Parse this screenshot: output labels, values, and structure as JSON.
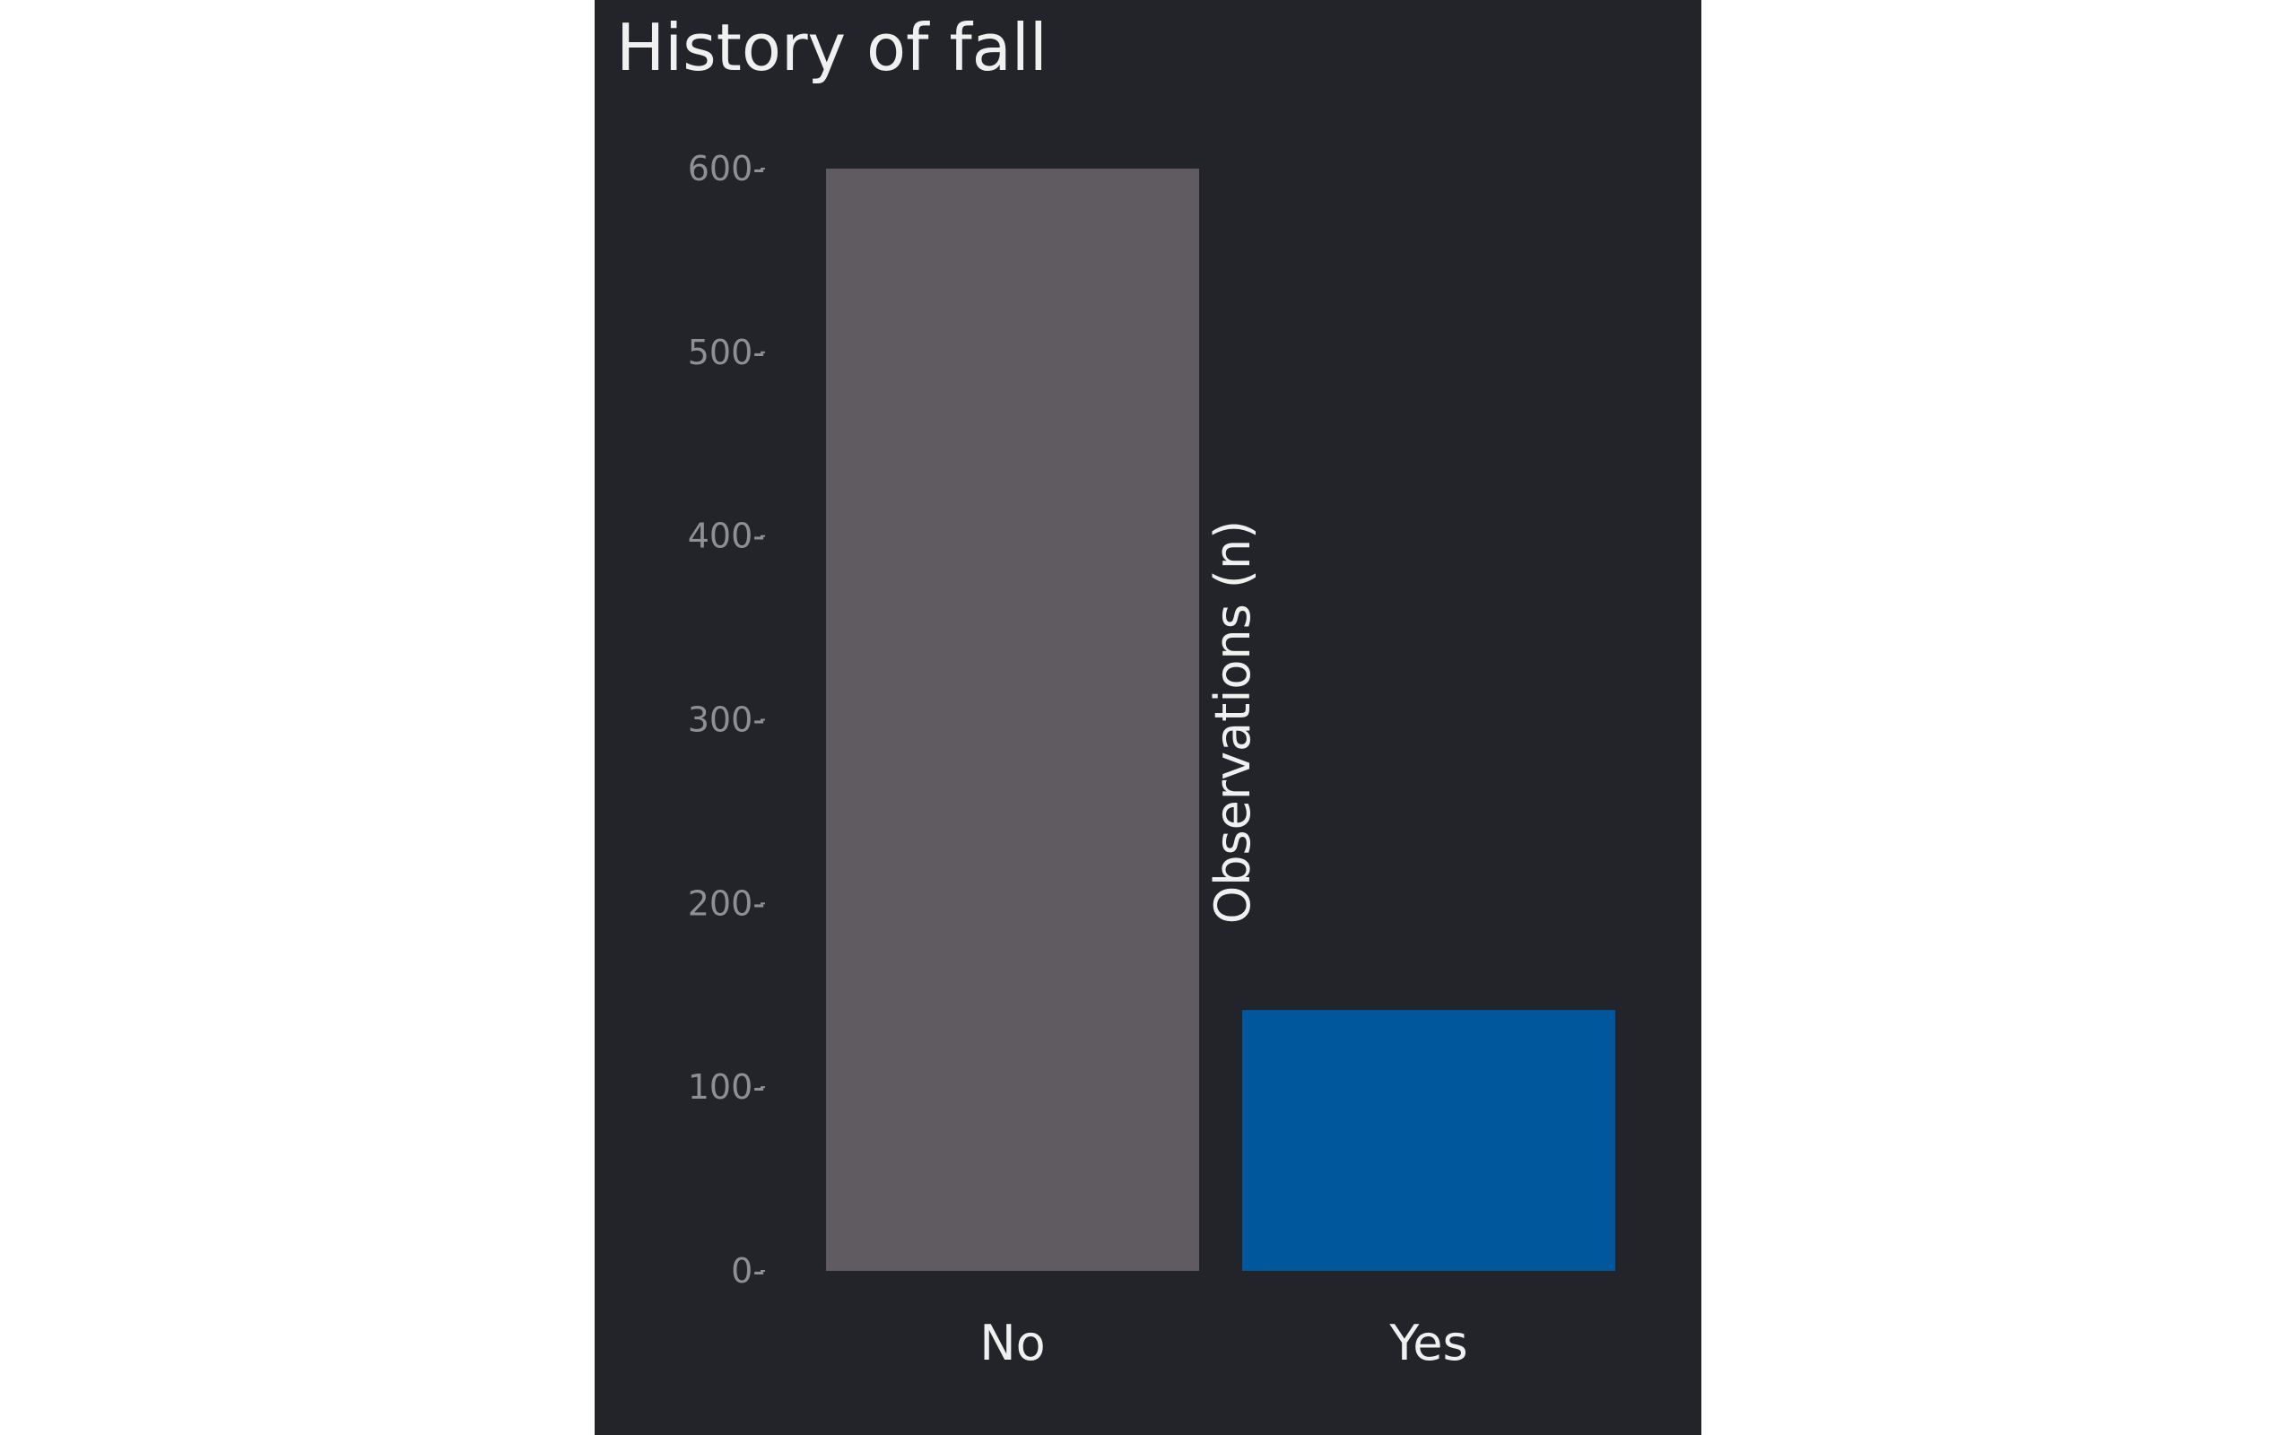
{
  "chart_data": {
    "type": "bar",
    "title": "History of fall",
    "xlabel": "",
    "ylabel": "Observations (n)",
    "categories": [
      "No",
      "Yes"
    ],
    "values": [
      600,
      142
    ],
    "ylim": [
      0,
      600
    ],
    "yticks": [
      0,
      100,
      200,
      300,
      400,
      500,
      600
    ],
    "ytick_labels": [
      "0-",
      "100-",
      "200-",
      "300-",
      "400-",
      "500-",
      "600-"
    ],
    "grid": false,
    "colors": {
      "background": "#222429",
      "bars": [
        "#5f5b61",
        "#00579b"
      ]
    }
  }
}
